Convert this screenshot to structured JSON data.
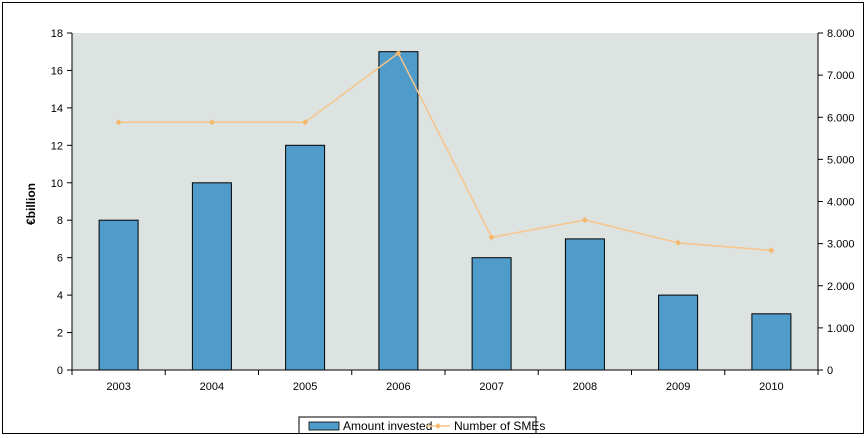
{
  "chart_data": {
    "type": "bar",
    "categories": [
      "2003",
      "2004",
      "2005",
      "2006",
      "2007",
      "2008",
      "2009",
      "2010"
    ],
    "series": [
      {
        "name": "Amount invested",
        "type": "bar",
        "axis": "left",
        "values": [
          8,
          10,
          12,
          17,
          6,
          7,
          4,
          3
        ]
      },
      {
        "name": "Number of SMEs",
        "type": "line",
        "axis": "right",
        "values": [
          5880,
          5880,
          5880,
          7520,
          3150,
          3560,
          3020,
          2840
        ]
      }
    ],
    "ylabel": "€billion",
    "ylim": [
      0,
      18
    ],
    "yticks": [
      "0",
      "2",
      "4",
      "6",
      "8",
      "10",
      "12",
      "14",
      "16",
      "18"
    ],
    "y2lim": [
      0,
      8000
    ],
    "y2ticks": [
      "0",
      "1.000",
      "2.000",
      "3.000",
      "4.000",
      "5.000",
      "6.000",
      "7.000",
      "8.000"
    ],
    "grid": false,
    "legend": "bottom",
    "colors": {
      "plot_background": "#dde3e0",
      "bar": "#4f9bc9",
      "bar_outline": "#000000",
      "line": "#f7c58a",
      "marker": "#f5b86a"
    }
  }
}
